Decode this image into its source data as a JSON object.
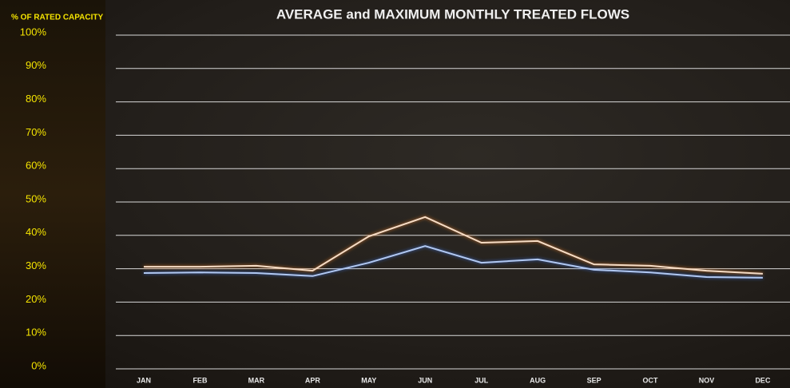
{
  "chart_data": {
    "type": "line",
    "title": "AVERAGE and MAXIMUM MONTHLY TREATED FLOWS",
    "y_label": "% OF RATED CAPACITY",
    "categories": [
      "JAN",
      "FEB",
      "MAR",
      "APR",
      "MAY",
      "JUN",
      "JUL",
      "AUG",
      "SEP",
      "OCT",
      "NOV",
      "DEC"
    ],
    "series": [
      {
        "color": "#f6dcc4",
        "values": [
          30.6,
          30.6,
          30.9,
          29.4,
          39.7,
          45.5,
          37.8,
          38.3,
          31.3,
          30.9,
          29.4,
          28.5
        ]
      },
      {
        "color": "#b0c8f2",
        "values": [
          28.7,
          28.9,
          28.7,
          27.8,
          31.8,
          36.8,
          31.8,
          32.8,
          29.7,
          28.9,
          27.5,
          27.3
        ]
      }
    ],
    "ylim": [
      0,
      100
    ],
    "yticks": [
      {
        "value": 0,
        "label": "0%"
      },
      {
        "value": 10,
        "label": "10%"
      },
      {
        "value": 20,
        "label": "20%"
      },
      {
        "value": 30,
        "label": "30%"
      },
      {
        "value": 40,
        "label": "40%"
      },
      {
        "value": 50,
        "label": "50%"
      },
      {
        "value": 60,
        "label": "60%"
      },
      {
        "value": 70,
        "label": "70%"
      },
      {
        "value": 80,
        "label": "80%"
      },
      {
        "value": 90,
        "label": "90%"
      },
      {
        "value": 100,
        "label": "100%"
      }
    ],
    "grid": true
  }
}
